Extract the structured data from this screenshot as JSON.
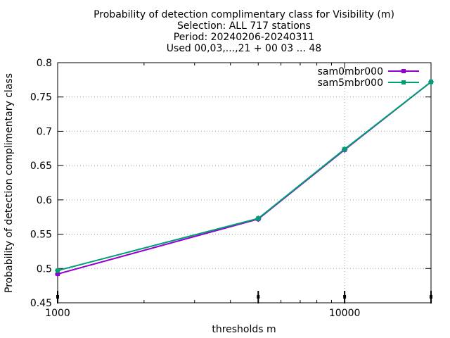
{
  "chart_data": {
    "type": "line",
    "title_lines": [
      "Probability of detection complimentary class  for Visibility (m)",
      "Selection: ALL    717 stations",
      "Period: 20240206-20240311",
      "Used 00,03,...,21 + 00 03 ... 48"
    ],
    "xlabel": "thresholds m",
    "ylabel": "Probability of detection complimentary class",
    "x_scale": "log",
    "xlim": [
      1000,
      20000
    ],
    "ylim": [
      0.45,
      0.8
    ],
    "x_ticks": [
      1000,
      10000
    ],
    "x_tick_labels": [
      "1000",
      "10000"
    ],
    "y_ticks": [
      0.45,
      0.5,
      0.55,
      0.6,
      0.65,
      0.7,
      0.75,
      0.8
    ],
    "y_tick_labels": [
      "0.45",
      "0.5",
      "0.55",
      "0.6",
      "0.65",
      "0.7",
      "0.75",
      "0.8"
    ],
    "grid": true,
    "legend_position": "top-right",
    "x": [
      1000,
      5000,
      10000,
      20000
    ],
    "series": [
      {
        "name": "sam0mbr000",
        "color": "#9400d3",
        "values": [
          0.492,
          0.572,
          0.673,
          0.772
        ]
      },
      {
        "name": "sam5mbr000",
        "color": "#009e73",
        "values": [
          0.497,
          0.573,
          0.674,
          0.772
        ]
      }
    ]
  }
}
